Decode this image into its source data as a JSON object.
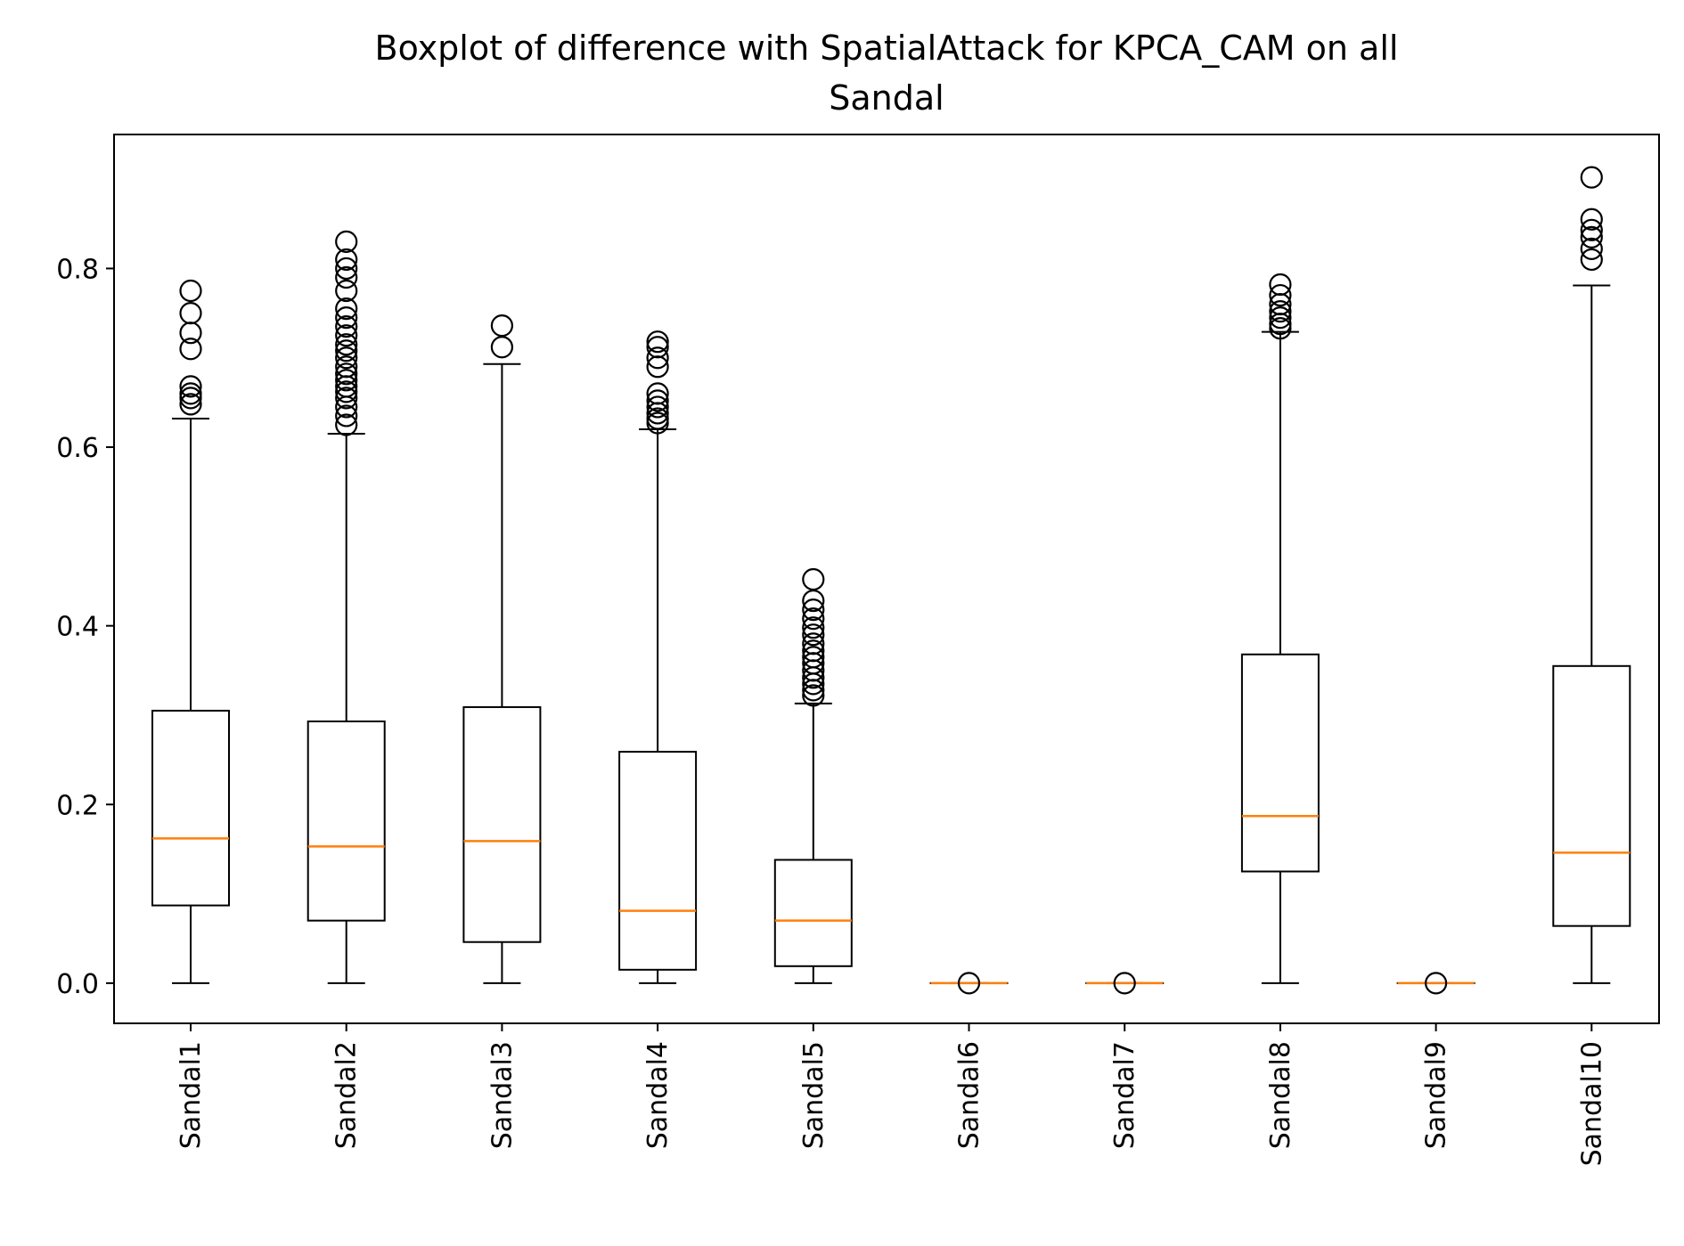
{
  "chart_data": {
    "type": "boxplot",
    "title_lines": [
      "Boxplot of difference with SpatialAttack for KPCA_CAM on all",
      "Sandal"
    ],
    "xlabel": "",
    "ylabel": "",
    "ylim": [
      -0.045,
      0.95
    ],
    "yticks": [
      0.0,
      0.2,
      0.4,
      0.6,
      0.8
    ],
    "ytick_labels": [
      "0.0",
      "0.2",
      "0.4",
      "0.6",
      "0.8"
    ],
    "grid": false,
    "colors": {
      "box": "#000000",
      "median": "#ff7f0e",
      "background": "#ffffff"
    },
    "categories": [
      "Sandal1",
      "Sandal2",
      "Sandal3",
      "Sandal4",
      "Sandal5",
      "Sandal6",
      "Sandal7",
      "Sandal8",
      "Sandal9",
      "Sandal10"
    ],
    "boxes": [
      {
        "label": "Sandal1",
        "whisker_low": 0.0,
        "q1": 0.087,
        "median": 0.162,
        "q3": 0.305,
        "whisker_high": 0.632,
        "outliers": [
          0.648,
          0.655,
          0.66,
          0.668,
          0.71,
          0.728,
          0.75,
          0.775
        ]
      },
      {
        "label": "Sandal2",
        "whisker_low": 0.0,
        "q1": 0.07,
        "median": 0.153,
        "q3": 0.293,
        "whisker_high": 0.615,
        "outliers": [
          0.625,
          0.635,
          0.645,
          0.655,
          0.662,
          0.668,
          0.675,
          0.682,
          0.69,
          0.7,
          0.708,
          0.715,
          0.725,
          0.735,
          0.745,
          0.755,
          0.775,
          0.79,
          0.8,
          0.81,
          0.83
        ]
      },
      {
        "label": "Sandal3",
        "whisker_low": 0.0,
        "q1": 0.046,
        "median": 0.159,
        "q3": 0.309,
        "whisker_high": 0.693,
        "outliers": [
          0.712,
          0.736
        ]
      },
      {
        "label": "Sandal4",
        "whisker_low": 0.0,
        "q1": 0.015,
        "median": 0.081,
        "q3": 0.259,
        "whisker_high": 0.62,
        "outliers": [
          0.627,
          0.632,
          0.638,
          0.645,
          0.652,
          0.66,
          0.69,
          0.7,
          0.712,
          0.718
        ]
      },
      {
        "label": "Sandal5",
        "whisker_low": 0.0,
        "q1": 0.019,
        "median": 0.07,
        "q3": 0.138,
        "whisker_high": 0.313,
        "outliers": [
          0.322,
          0.328,
          0.335,
          0.342,
          0.35,
          0.358,
          0.365,
          0.372,
          0.38,
          0.39,
          0.398,
          0.408,
          0.418,
          0.428,
          0.452
        ]
      },
      {
        "label": "Sandal6",
        "whisker_low": 0.0,
        "q1": 0.0,
        "median": 0.0,
        "q3": 0.0,
        "whisker_high": 0.0,
        "outliers": [
          0.0
        ]
      },
      {
        "label": "Sandal7",
        "whisker_low": 0.0,
        "q1": 0.0,
        "median": 0.0,
        "q3": 0.0,
        "whisker_high": 0.0,
        "outliers": [
          0.0
        ]
      },
      {
        "label": "Sandal8",
        "whisker_low": 0.0,
        "q1": 0.125,
        "median": 0.187,
        "q3": 0.368,
        "whisker_high": 0.729,
        "outliers": [
          0.733,
          0.738,
          0.745,
          0.752,
          0.76,
          0.77,
          0.782
        ]
      },
      {
        "label": "Sandal9",
        "whisker_low": 0.0,
        "q1": 0.0,
        "median": 0.0,
        "q3": 0.0,
        "whisker_high": 0.0,
        "outliers": [
          0.0
        ]
      },
      {
        "label": "Sandal10",
        "whisker_low": 0.0,
        "q1": 0.064,
        "median": 0.146,
        "q3": 0.355,
        "whisker_high": 0.781,
        "outliers": [
          0.81,
          0.822,
          0.835,
          0.843,
          0.855,
          0.902
        ]
      }
    ]
  }
}
